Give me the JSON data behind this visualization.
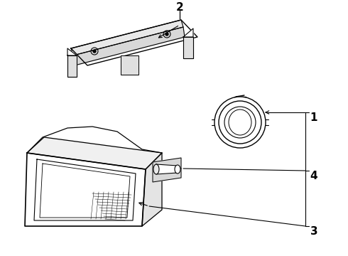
{
  "bg_color": "#ffffff",
  "line_color": "#000000",
  "label_font_size": 11,
  "fig_width": 4.9,
  "fig_height": 3.6,
  "dpi": 100
}
